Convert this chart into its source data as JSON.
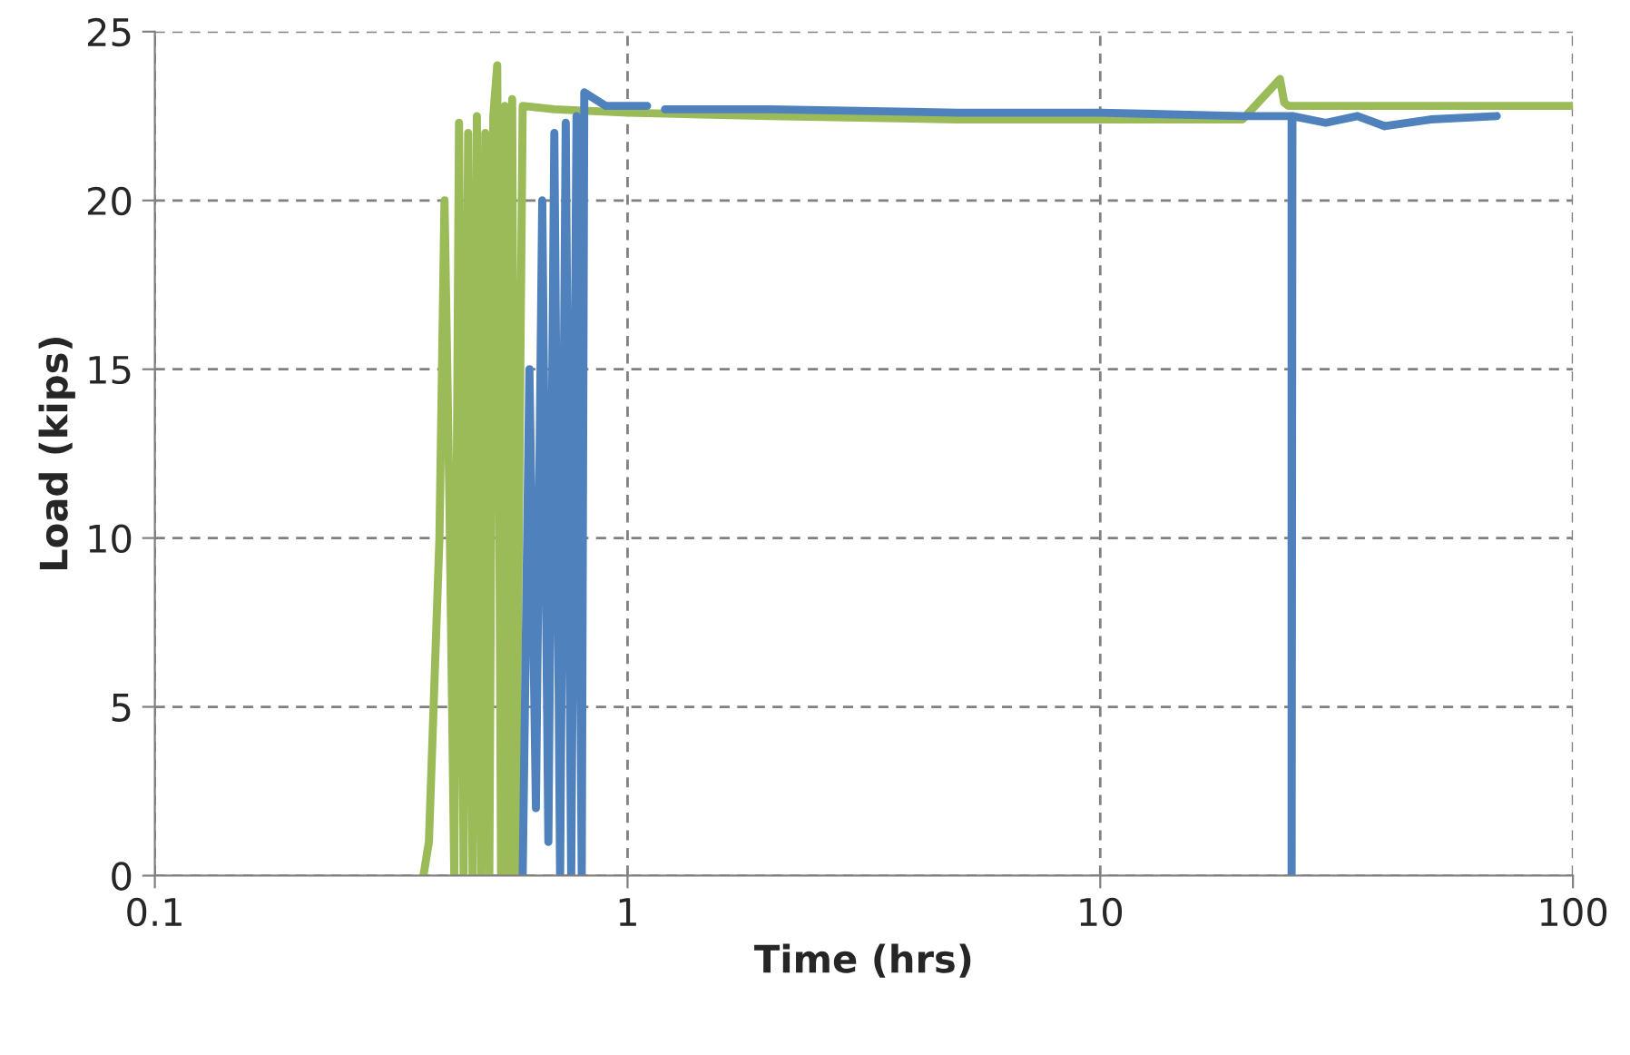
{
  "chart_data": {
    "type": "line",
    "xlabel": "Time (hrs)",
    "ylabel": "Load (kips)",
    "log": "x",
    "xlim": [
      0.1,
      100
    ],
    "xticks": [
      0.1,
      1,
      10,
      100
    ],
    "ylim": [
      0,
      25
    ],
    "yticks": [
      0,
      5,
      10,
      15,
      20,
      25
    ],
    "grid": true,
    "marker": "none",
    "line_style": "solid",
    "series": [
      {
        "color": "#9bbb59",
        "x": [
          0.37,
          0.38,
          0.4,
          0.41,
          0.42,
          0.43,
          0.44,
          0.45,
          0.46,
          0.47,
          0.48,
          0.49,
          0.5,
          0.51,
          0.52,
          0.53,
          0.54,
          0.55,
          0.56,
          0.57,
          0.58,
          0.6,
          0.7,
          1,
          2,
          5,
          10,
          20,
          24,
          24.5,
          25,
          30,
          50,
          100
        ],
        "values": [
          0,
          1,
          10,
          20,
          11,
          0,
          22.3,
          0,
          22,
          0,
          22.5,
          0,
          22,
          0,
          22.5,
          24,
          0,
          22.8,
          0,
          23,
          0,
          22.8,
          22.7,
          22.6,
          22.5,
          22.4,
          22.4,
          22.4,
          23.6,
          22.9,
          22.8,
          22.8,
          22.8,
          22.8
        ]
      },
      {
        "color": "#4f81bd",
        "x": [
          0.6,
          0.62,
          0.64,
          0.66,
          0.68,
          0.7,
          0.72,
          0.74,
          0.76,
          0.78,
          0.8,
          0.81,
          0.9,
          1.1,
          1.15,
          1.2,
          2,
          5,
          10,
          20,
          25.4,
          25.4,
          25.5,
          30,
          35,
          40,
          50,
          69
        ],
        "values": [
          0,
          15,
          2,
          20,
          1,
          22,
          0,
          22.3,
          0,
          22.5,
          0,
          23.2,
          22.8,
          22.8,
          null,
          22.7,
          22.7,
          22.6,
          22.6,
          22.5,
          22.5,
          0,
          22.5,
          22.3,
          22.5,
          22.2,
          22.4,
          22.5
        ]
      }
    ]
  }
}
